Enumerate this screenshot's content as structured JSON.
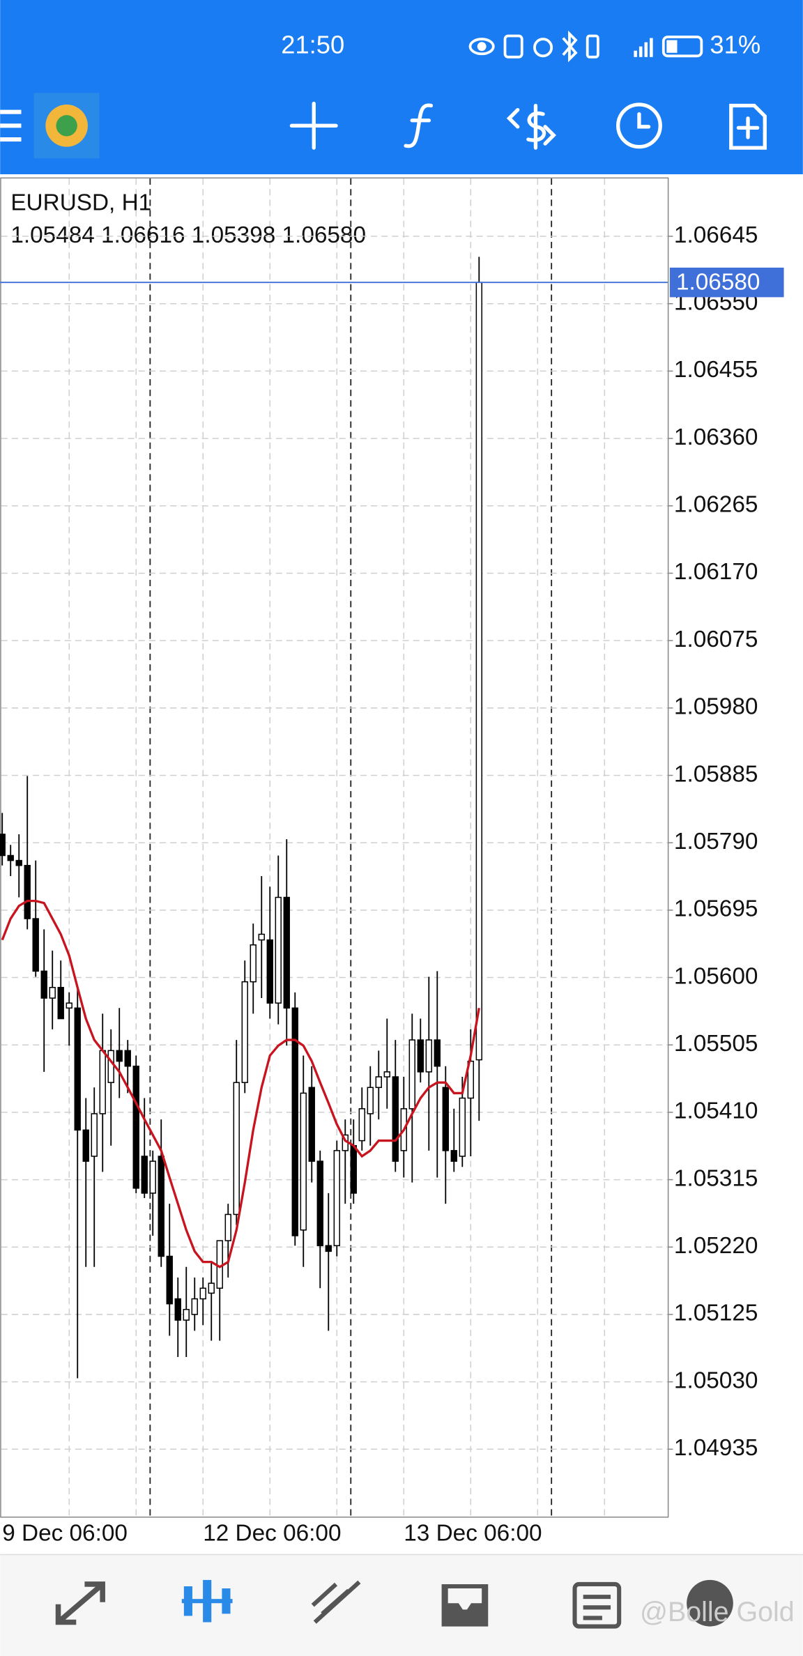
{
  "status": {
    "time": "21:50",
    "battery": "31%"
  },
  "watermark": "@Bolle Gold",
  "chart_data": {
    "type": "candlestick",
    "title": "EURUSD, H1",
    "ohlc_text": "1.05484 1.06616 1.05398 1.06580",
    "categories": [
      "9 Dec 06:00",
      null,
      null,
      null,
      null,
      null,
      null,
      null,
      null,
      null,
      null,
      null,
      null,
      null,
      null,
      null,
      null,
      null,
      null,
      null,
      null,
      null,
      null,
      null,
      "12 Dec 06:00",
      null,
      null,
      null,
      null,
      null,
      null,
      null,
      null,
      null,
      null,
      null,
      null,
      null,
      null,
      null,
      null,
      null,
      null,
      null,
      null,
      null,
      null,
      null,
      "13 Dec 06:00",
      null,
      null,
      null,
      null,
      null,
      null,
      null,
      null,
      null
    ],
    "open": [
      1.05802,
      1.05772,
      1.05765,
      1.05758,
      1.05683,
      1.05609,
      1.05571,
      1.05586,
      1.05557,
      1.05557,
      1.05385,
      1.05348,
      1.05408,
      1.05452,
      1.05497,
      1.05497,
      1.05475,
      1.05348,
      1.05296,
      1.05348,
      1.05207,
      1.05147,
      1.05117,
      1.05125,
      1.05147,
      1.05155,
      1.05162,
      1.05229,
      1.05266,
      1.05452,
      1.05594,
      1.05653,
      1.05653,
      1.05564,
      1.05713,
      1.05557,
      1.05244,
      1.05445,
      1.05341,
      1.05222,
      1.05222,
      1.05356,
      1.05363,
      1.0537,
      1.05408,
      1.05445,
      1.0546,
      1.0546,
      1.05356,
      1.05415,
      1.05512,
      1.05467,
      1.05512,
      1.05445,
      1.05356,
      1.05348,
      1.0543,
      1.05484
    ],
    "high": [
      1.05832,
      1.05787,
      1.05802,
      1.05884,
      1.05765,
      1.05668,
      1.05638,
      1.05624,
      1.05579,
      1.05586,
      1.0543,
      1.05445,
      1.05549,
      1.05527,
      1.05557,
      1.05512,
      1.0549,
      1.0543,
      1.05356,
      1.054,
      1.05281,
      1.05177,
      1.05192,
      1.05177,
      1.05177,
      1.05199,
      1.05222,
      1.05281,
      1.05512,
      1.05624,
      1.05676,
      1.05743,
      1.05728,
      1.05772,
      1.05795,
      1.05579,
      1.0549,
      1.05475,
      1.05356,
      1.05296,
      1.0537,
      1.054,
      1.054,
      1.05445,
      1.05475,
      1.05497,
      1.05542,
      1.05512,
      1.0546,
      1.05549,
      1.05542,
      1.05601,
      1.05609,
      1.05475,
      1.05415,
      1.0546,
      1.05527,
      1.06616
    ],
    "low": [
      1.05758,
      1.05743,
      1.05713,
      1.05668,
      1.05601,
      1.05467,
      1.05527,
      1.05542,
      1.05504,
      1.05035,
      1.05192,
      1.05192,
      1.05326,
      1.05363,
      1.0543,
      1.05437,
      1.05296,
      1.05289,
      1.05236,
      1.05192,
      1.05095,
      1.05065,
      1.05065,
      1.05102,
      1.0511,
      1.05088,
      1.05088,
      1.05177,
      1.05251,
      1.05437,
      1.05549,
      1.05571,
      1.05542,
      1.05534,
      1.05504,
      1.05222,
      1.05192,
      1.05311,
      1.05162,
      1.05102,
      1.05207,
      1.05281,
      1.05281,
      1.05356,
      1.05363,
      1.054,
      1.05415,
      1.05326,
      1.05318,
      1.05311,
      1.05452,
      1.05356,
      1.05318,
      1.05281,
      1.05326,
      1.05333,
      1.05348,
      1.05398
    ],
    "close": [
      1.05772,
      1.05765,
      1.05758,
      1.05683,
      1.05609,
      1.05571,
      1.05586,
      1.05542,
      1.05564,
      1.05385,
      1.05341,
      1.05408,
      1.05497,
      1.05497,
      1.05482,
      1.05475,
      1.05303,
      1.05296,
      1.05341,
      1.05207,
      1.0514,
      1.05117,
      1.05132,
      1.05147,
      1.05162,
      1.05169,
      1.05229,
      1.05266,
      1.05452,
      1.05594,
      1.05646,
      1.05661,
      1.05564,
      1.05713,
      1.05557,
      1.05236,
      1.05437,
      1.05341,
      1.05222,
      1.05214,
      1.05356,
      1.05378,
      1.05296,
      1.05415,
      1.05445,
      1.0546,
      1.05467,
      1.05341,
      1.05415,
      1.05512,
      1.05467,
      1.05512,
      1.05475,
      1.05356,
      1.05341,
      1.0543,
      1.05482,
      1.0658
    ],
    "bull_color": "#ffffff",
    "bear_color": "#000000",
    "ma": {
      "color": "#c8141e",
      "values": [
        1.05653,
        1.05683,
        1.05701,
        1.05708,
        1.05708,
        1.05705,
        1.05683,
        1.05661,
        1.05631,
        1.05586,
        1.05542,
        1.05512,
        1.05497,
        1.05482,
        1.05467,
        1.05445,
        1.05423,
        1.054,
        1.05378,
        1.05356,
        1.05318,
        1.05281,
        1.05244,
        1.05214,
        1.05199,
        1.05199,
        1.05192,
        1.05199,
        1.05244,
        1.05311,
        1.05385,
        1.05445,
        1.0549,
        1.05504,
        1.05512,
        1.05512,
        1.05504,
        1.05482,
        1.05452,
        1.05423,
        1.05393,
        1.0537,
        1.05363,
        1.05348,
        1.05356,
        1.0537,
        1.0537,
        1.0537,
        1.05385,
        1.05408,
        1.0543,
        1.05445,
        1.05452,
        1.05452,
        1.05437,
        1.05437,
        1.0549,
        1.05557
      ]
    },
    "price_line": {
      "value": 1.0658,
      "label": "1.06580",
      "color": "#3f6fd8"
    },
    "ylim": [
      1.0484,
      1.06728
    ],
    "yticks": [
      1.06645,
      {
        "value": 1.0655,
        "label": "1.06550"
      },
      1.06455,
      {
        "value": 1.0636,
        "label": "1.06360"
      },
      1.06265,
      {
        "value": 1.0617,
        "label": "1.06170"
      },
      1.06075,
      {
        "value": 1.0598,
        "label": "1.05980"
      },
      1.05885,
      {
        "value": 1.0579,
        "label": "1.05790"
      },
      1.05695,
      {
        "value": 1.056,
        "label": "1.05600"
      },
      1.05505,
      {
        "value": 1.0541,
        "label": "1.05410"
      },
      1.05315,
      {
        "value": 1.0522,
        "label": "1.05220"
      },
      1.05125,
      {
        "value": 1.0503,
        "label": "1.05030"
      },
      1.04935
    ],
    "grid": true
  }
}
